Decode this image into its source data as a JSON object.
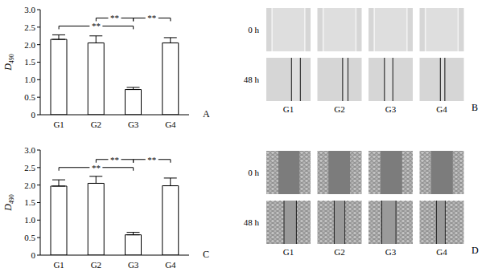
{
  "chart_data": [
    {
      "type": "bar",
      "label": "A",
      "categories": [
        "G1",
        "G2",
        "G3",
        "G4"
      ],
      "values": [
        2.15,
        2.05,
        0.72,
        2.05
      ],
      "errors": [
        0.13,
        0.2,
        0.06,
        0.15
      ],
      "color": "#ffffff",
      "ylabel": "D490",
      "ylim": [
        0,
        3
      ],
      "yticks": [
        0,
        0.5,
        {
          "value": 1,
          "label": "1.0"
        },
        1.5,
        {
          "value": 2,
          "label": "2.0"
        },
        2.5,
        {
          "value": 3,
          "label": "3.0"
        }
      ],
      "annotations": [
        {
          "from": "G1",
          "to": "G3",
          "text": "**"
        },
        {
          "from": "G2",
          "to": "G3",
          "text": "**"
        },
        {
          "from": "G3",
          "to": "G4",
          "text": "**"
        }
      ]
    },
    {
      "type": "bar",
      "label": "C",
      "categories": [
        "G1",
        "G2",
        "G3",
        "G4"
      ],
      "values": [
        1.97,
        2.05,
        0.58,
        1.98
      ],
      "errors": [
        0.18,
        0.2,
        0.07,
        0.22
      ],
      "color": "#ffffff",
      "ylabel": "D490",
      "ylim": [
        0,
        3
      ],
      "yticks": [
        0,
        0.5,
        {
          "value": 1,
          "label": "1.0"
        },
        1.5,
        {
          "value": 2,
          "label": "2.0"
        },
        2.5,
        {
          "value": 3,
          "label": "3.0"
        }
      ],
      "annotations": [
        {
          "from": "G1",
          "to": "G3",
          "text": "**"
        },
        {
          "from": "G2",
          "to": "G3",
          "text": "**"
        },
        {
          "from": "G3",
          "to": "G4",
          "text": "**"
        }
      ]
    },
    {
      "type": "image",
      "label": "B",
      "categories": [
        "G1",
        "G2",
        "G3",
        "G4"
      ],
      "rows": [
        "0 h",
        "48 h"
      ]
    },
    {
      "type": "image",
      "label": "D",
      "categories": [
        "G1",
        "G2",
        "G3",
        "G4"
      ],
      "rows": [
        "0 h",
        "48 h"
      ]
    }
  ]
}
